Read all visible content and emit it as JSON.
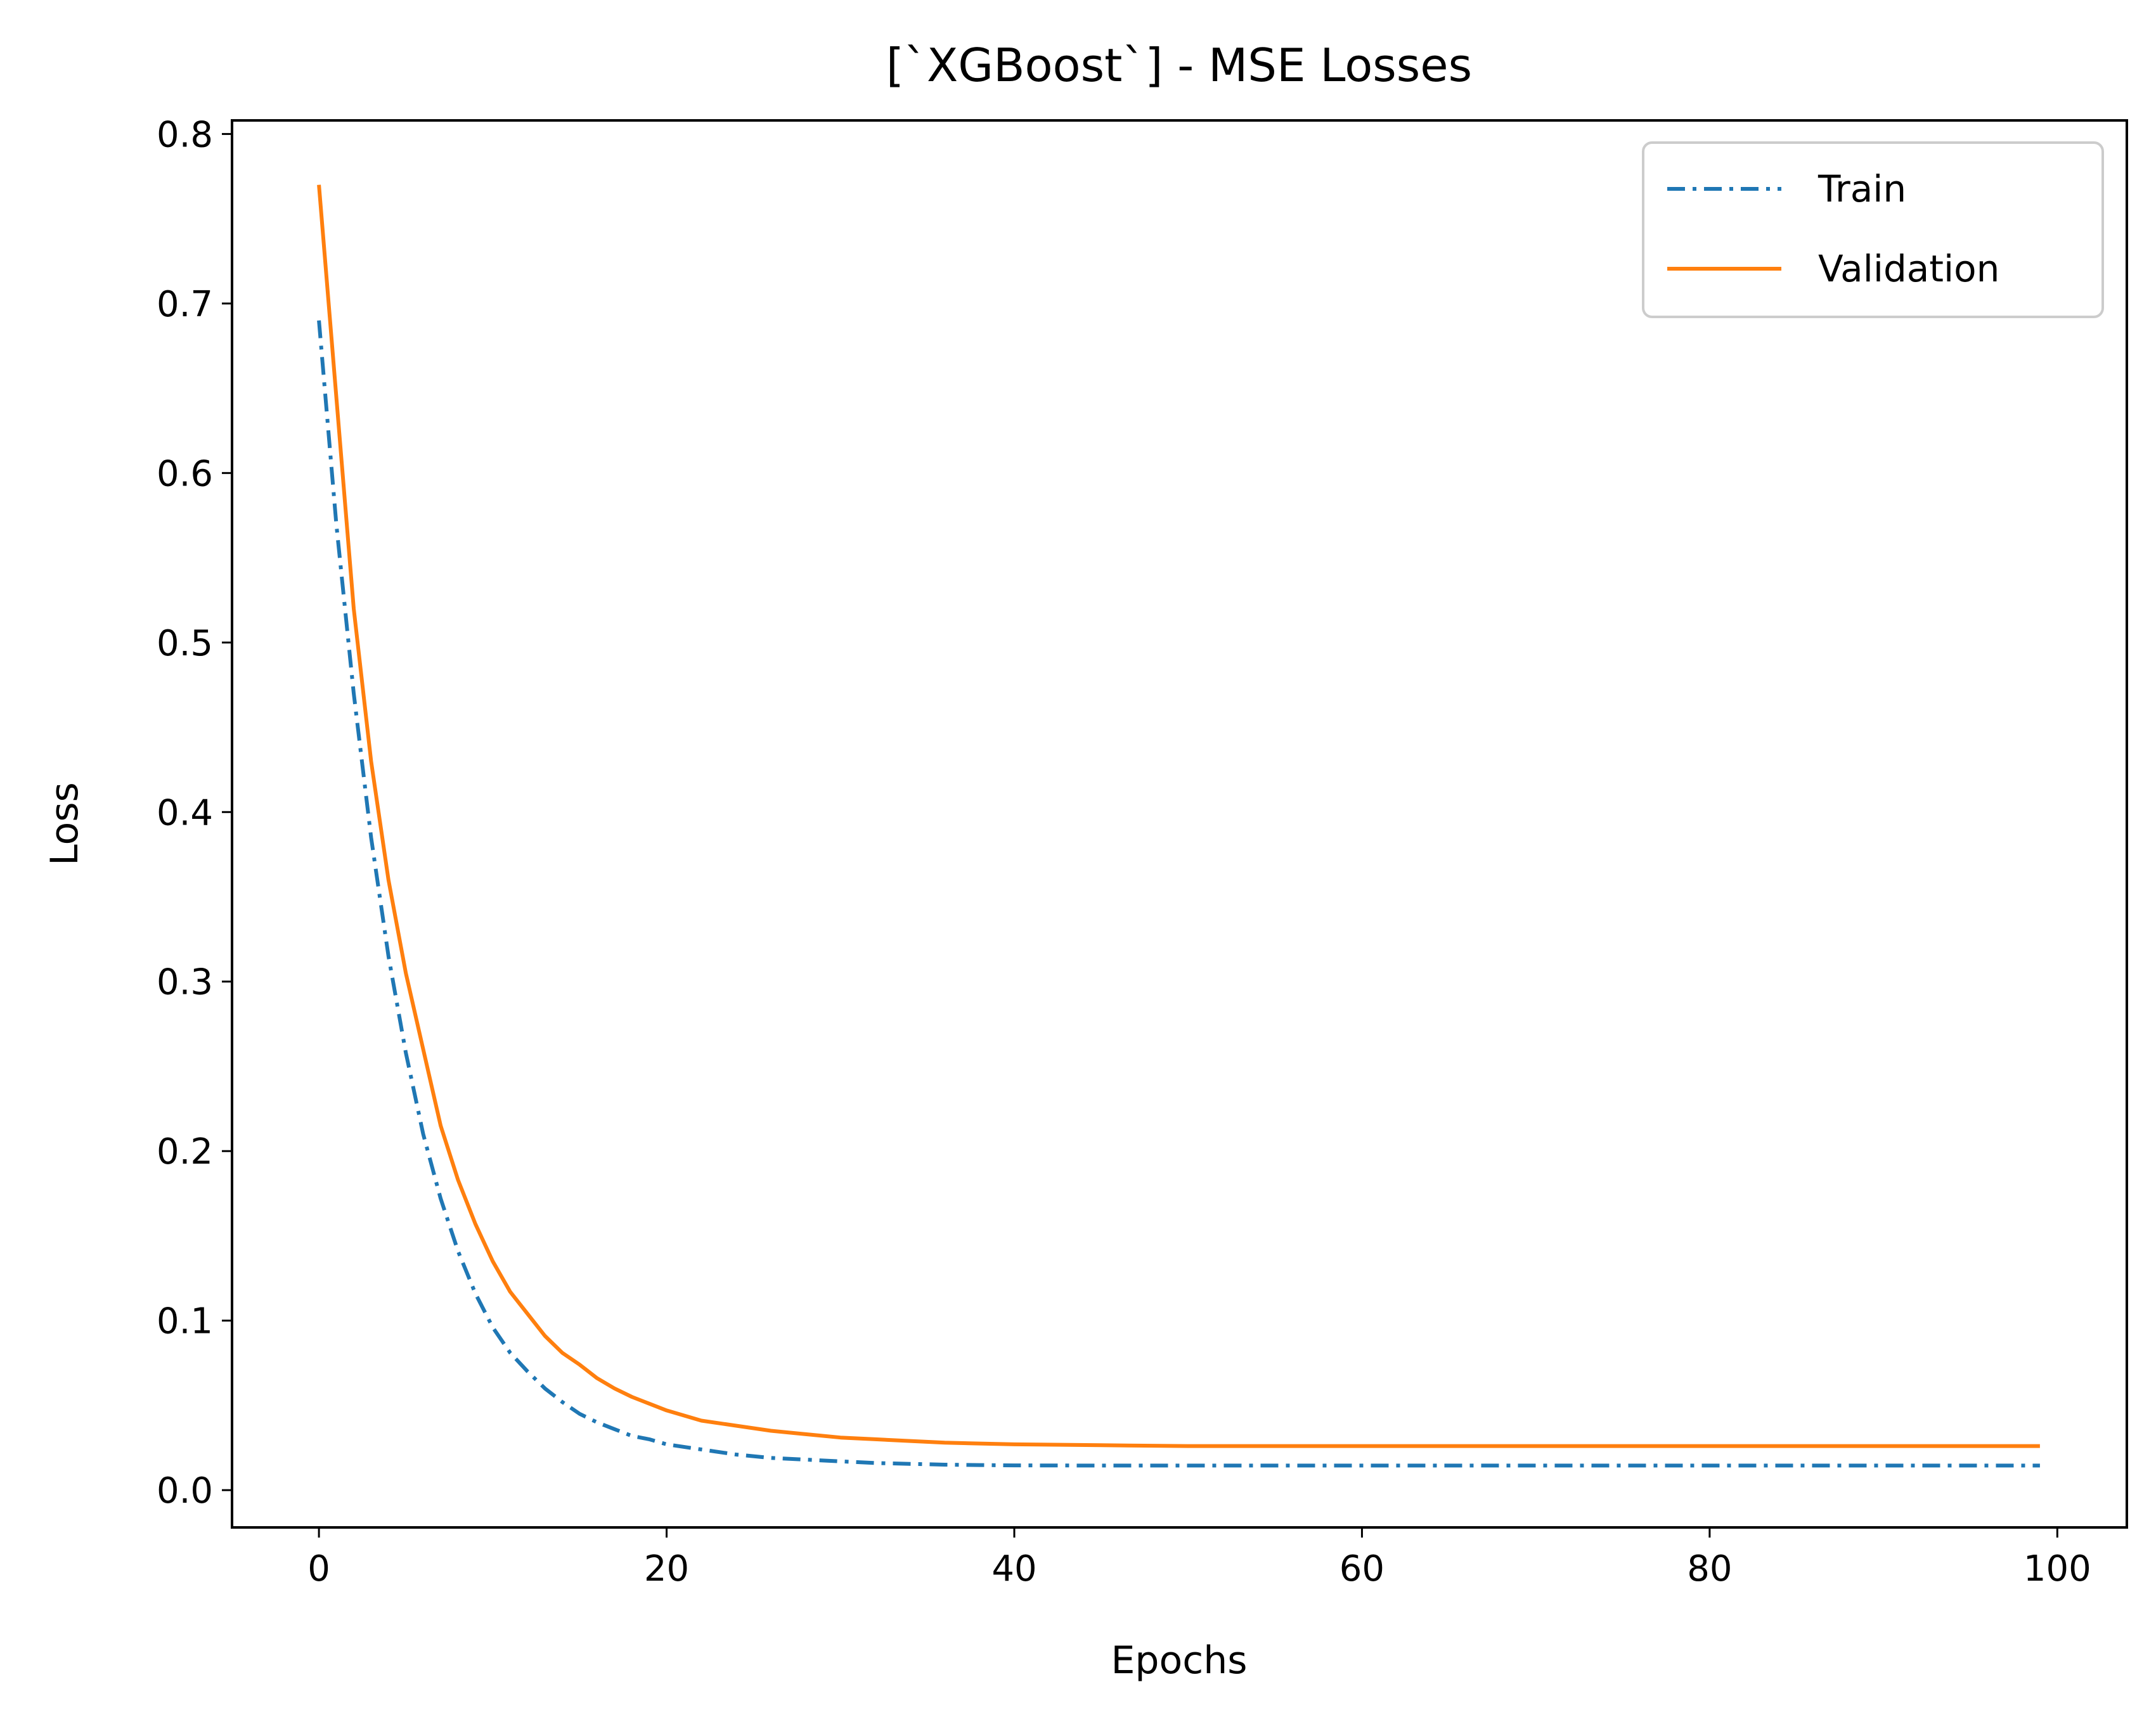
{
  "chart_data": {
    "type": "line",
    "title": "[`XGBoost`] - MSE Losses",
    "xlabel": "Epochs",
    "ylabel": "Loss",
    "xlim": [
      -5,
      104
    ],
    "ylim": [
      -0.022,
      0.808
    ],
    "xticks": [
      0,
      20,
      40,
      60,
      80,
      100
    ],
    "xtick_labels": [
      "0",
      "20",
      "40",
      "60",
      "80",
      "100"
    ],
    "yticks": [
      0.0,
      0.1,
      0.2,
      0.3,
      0.4,
      0.5,
      0.6,
      0.7,
      0.8
    ],
    "ytick_labels": [
      "0.0",
      "0.1",
      "0.2",
      "0.3",
      "0.4",
      "0.5",
      "0.6",
      "0.7",
      "0.8"
    ],
    "grid": false,
    "legend_position": "top-right",
    "series": [
      {
        "name": "Train",
        "color": "#1f77b4",
        "linestyle": "dashdot",
        "x": [
          0,
          1,
          2,
          3,
          4,
          5,
          6,
          7,
          8,
          9,
          10,
          11,
          12,
          13,
          14,
          15,
          16,
          17,
          18,
          19,
          20,
          22,
          24,
          26,
          28,
          30,
          32,
          34,
          36,
          38,
          40,
          45,
          50,
          55,
          60,
          70,
          80,
          90,
          99
        ],
        "y": [
          0.69,
          0.57,
          0.47,
          0.385,
          0.315,
          0.258,
          0.21,
          0.172,
          0.141,
          0.116,
          0.096,
          0.081,
          0.07,
          0.06,
          0.052,
          0.045,
          0.04,
          0.036,
          0.032,
          0.03,
          0.027,
          0.024,
          0.021,
          0.019,
          0.018,
          0.017,
          0.016,
          0.0155,
          0.015,
          0.0148,
          0.0146,
          0.0145,
          0.0145,
          0.0145,
          0.0145,
          0.0145,
          0.0145,
          0.0145,
          0.0145
        ]
      },
      {
        "name": "Validation",
        "color": "#ff7f0e",
        "linestyle": "solid",
        "x": [
          0,
          1,
          2,
          3,
          4,
          5,
          6,
          7,
          8,
          9,
          10,
          11,
          12,
          13,
          14,
          15,
          16,
          17,
          18,
          19,
          20,
          22,
          24,
          26,
          28,
          30,
          32,
          34,
          36,
          38,
          40,
          45,
          50,
          55,
          60,
          70,
          80,
          90,
          99
        ],
        "y": [
          0.77,
          0.645,
          0.52,
          0.43,
          0.36,
          0.305,
          0.26,
          0.215,
          0.183,
          0.157,
          0.135,
          0.117,
          0.104,
          0.091,
          0.081,
          0.074,
          0.066,
          0.06,
          0.055,
          0.051,
          0.047,
          0.041,
          0.038,
          0.035,
          0.033,
          0.031,
          0.03,
          0.029,
          0.028,
          0.0275,
          0.027,
          0.0265,
          0.026,
          0.026,
          0.026,
          0.026,
          0.026,
          0.026,
          0.026
        ]
      }
    ]
  }
}
